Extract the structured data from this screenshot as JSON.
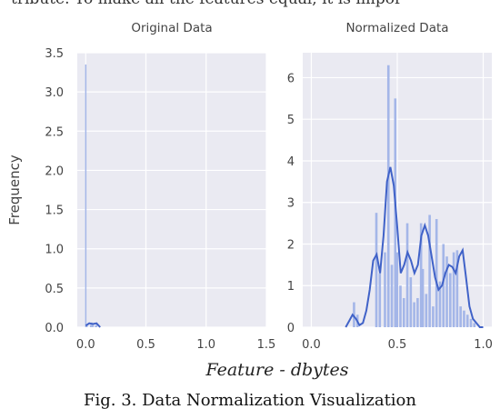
{
  "page": {
    "top_text": "tribute. To make all the features equal, it is impor",
    "xlabel": "Feature - dbytes",
    "caption": "Fig. 3. Data Normalization Visualization"
  },
  "colors": {
    "panel_bg": "#eaeaf2",
    "bar": "#a4b6e8",
    "kde": "#4062c8"
  },
  "chart_data": [
    {
      "type": "bar",
      "title": "Original Data",
      "ylabel": "Frequency",
      "xlim": [
        -0.07,
        1.5
      ],
      "ylim": [
        0,
        3.5
      ],
      "xticks": [
        "0.0",
        "0.5",
        "1.0",
        "1.5"
      ],
      "yticks": [
        "0.0",
        "0.5",
        "1.0",
        "1.5",
        "2.0",
        "2.5",
        "3.0",
        "3.5"
      ],
      "bin_width": 0.01,
      "x": [
        0.0,
        0.01,
        0.04,
        0.05,
        0.06,
        0.08,
        0.09
      ],
      "values": [
        3.35,
        0.03,
        0.03,
        0.06,
        0.03,
        0.02,
        0.05
      ],
      "kde": {
        "x": [
          0.0,
          0.03,
          0.06,
          0.09,
          0.12
        ],
        "y": [
          0.02,
          0.05,
          0.04,
          0.05,
          0.0
        ]
      }
    },
    {
      "type": "bar",
      "title": "Normalized Data",
      "xlim": [
        -0.05,
        1.05
      ],
      "ylim": [
        0,
        6.6
      ],
      "xticks": [
        "0.0",
        "0.5",
        "1.0"
      ],
      "yticks": [
        "0",
        "1",
        "2",
        "3",
        "4",
        "5",
        "6"
      ],
      "bin_width": 0.017,
      "x": [
        0.25,
        0.27,
        0.38,
        0.4,
        0.43,
        0.45,
        0.47,
        0.49,
        0.5,
        0.52,
        0.54,
        0.56,
        0.58,
        0.6,
        0.62,
        0.64,
        0.65,
        0.67,
        0.69,
        0.71,
        0.73,
        0.75,
        0.77,
        0.79,
        0.81,
        0.83,
        0.85,
        0.87,
        0.89,
        0.91,
        0.93,
        0.95
      ],
      "values": [
        0.6,
        0.3,
        2.75,
        1.3,
        1.8,
        6.3,
        1.5,
        5.5,
        1.8,
        1.0,
        0.7,
        2.5,
        1.2,
        0.6,
        0.7,
        2.5,
        1.4,
        0.8,
        2.7,
        0.5,
        2.6,
        1.1,
        2.0,
        1.7,
        1.3,
        1.8,
        1.85,
        0.5,
        0.4,
        0.3,
        0.2,
        0.1
      ],
      "kde": {
        "x": [
          0.2,
          0.22,
          0.24,
          0.26,
          0.28,
          0.3,
          0.32,
          0.34,
          0.36,
          0.38,
          0.4,
          0.42,
          0.44,
          0.46,
          0.48,
          0.5,
          0.52,
          0.54,
          0.56,
          0.58,
          0.6,
          0.62,
          0.64,
          0.66,
          0.68,
          0.7,
          0.72,
          0.74,
          0.76,
          0.78,
          0.8,
          0.82,
          0.84,
          0.86,
          0.88,
          0.9,
          0.92,
          0.94,
          0.96,
          0.98,
          1.0
        ],
        "y": [
          0.0,
          0.15,
          0.3,
          0.2,
          0.05,
          0.1,
          0.4,
          0.9,
          1.6,
          1.75,
          1.3,
          2.2,
          3.5,
          3.85,
          3.4,
          2.4,
          1.3,
          1.5,
          1.8,
          1.6,
          1.3,
          1.5,
          2.2,
          2.45,
          2.2,
          1.7,
          1.2,
          0.9,
          1.0,
          1.3,
          1.5,
          1.45,
          1.3,
          1.7,
          1.85,
          1.2,
          0.5,
          0.2,
          0.1,
          0.0,
          0.0
        ]
      }
    }
  ]
}
